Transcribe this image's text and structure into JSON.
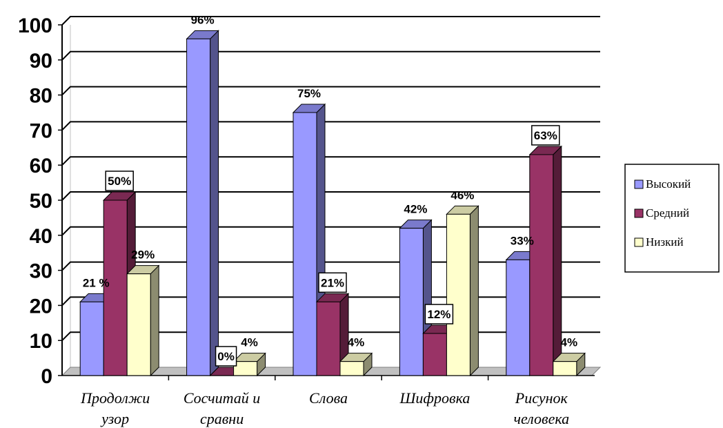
{
  "chart_data": {
    "type": "bar",
    "title": "",
    "xlabel": "",
    "ylabel": "",
    "ylim": [
      0,
      100
    ],
    "yticks": [
      0,
      10,
      20,
      30,
      40,
      50,
      60,
      70,
      80,
      90,
      100
    ],
    "grid": true,
    "legend_position": "right",
    "categories": [
      [
        "Продолжи",
        "узор"
      ],
      [
        "Сосчитай и",
        "сравни"
      ],
      [
        "Слова"
      ],
      [
        "Шифровка"
      ],
      [
        "Рисунок",
        "человека"
      ]
    ],
    "series": [
      {
        "name": "Высокий",
        "color": "#9999ff",
        "values": [
          21,
          96,
          75,
          42,
          33
        ],
        "labels": [
          "21 %",
          "96%",
          "75%",
          "42%",
          "33%"
        ]
      },
      {
        "name": "Средний",
        "color": "#993366",
        "values": [
          50,
          0,
          21,
          12,
          63
        ],
        "labels": [
          "50%",
          "0%",
          "21%",
          "12%",
          "63%"
        ]
      },
      {
        "name": "Низкий",
        "color": "#ffffcc",
        "values": [
          29,
          4,
          4,
          46,
          4
        ],
        "labels": [
          "29%",
          "4%",
          "4%",
          "46%",
          "4%"
        ]
      }
    ]
  }
}
